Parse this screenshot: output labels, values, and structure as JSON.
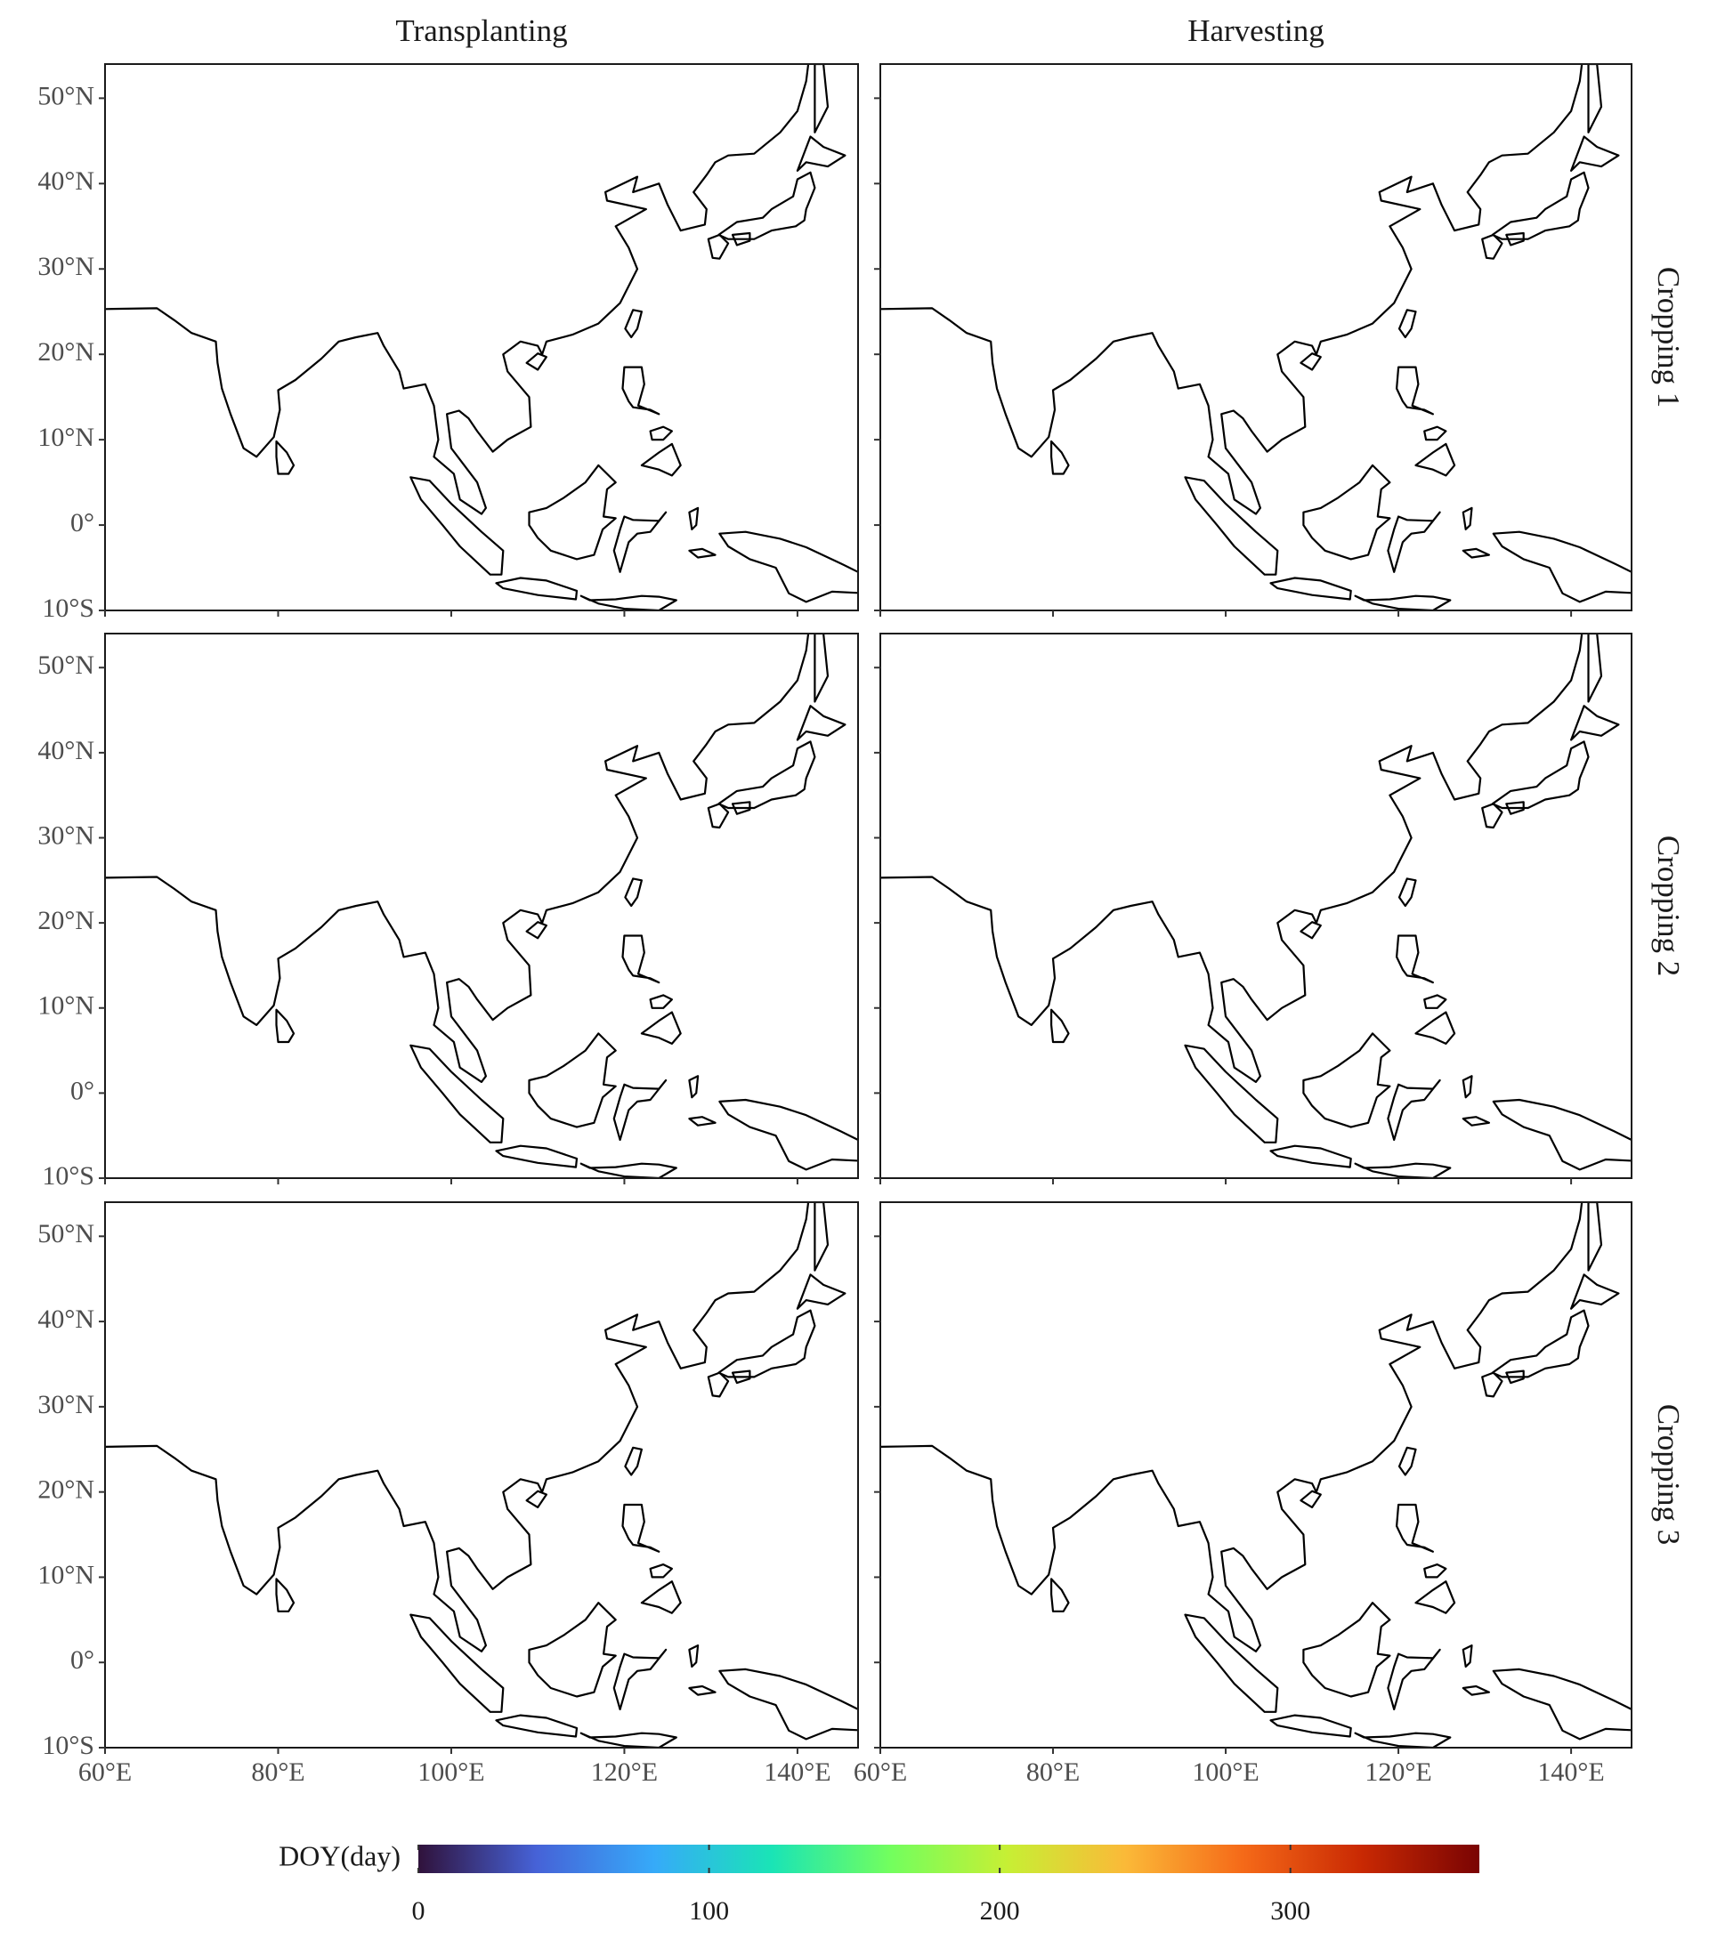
{
  "figure": {
    "columns": [
      "Transplanting",
      "Harvesting"
    ],
    "rows": [
      "Cropping 1",
      "Cropping 2",
      "Cropping 3"
    ],
    "xlim": [
      60,
      147
    ],
    "ylim": [
      -10,
      54
    ],
    "xticks": [
      {
        "value": 60,
        "label": "60°E"
      },
      {
        "value": 80,
        "label": "80°E"
      },
      {
        "value": 100,
        "label": "100°E"
      },
      {
        "value": 120,
        "label": "120°E"
      },
      {
        "value": 140,
        "label": "140°E"
      }
    ],
    "yticks": [
      {
        "value": -10,
        "label": "10°S"
      },
      {
        "value": 0,
        "label": "0°"
      },
      {
        "value": 10,
        "label": "10°N"
      },
      {
        "value": 20,
        "label": "20°N"
      },
      {
        "value": 30,
        "label": "30°N"
      },
      {
        "value": 40,
        "label": "40°N"
      },
      {
        "value": 50,
        "label": "50°N"
      }
    ],
    "colorbar": {
      "label": "DOY(day)",
      "lim": [
        0,
        365
      ],
      "ticks": [
        0,
        100,
        200,
        300
      ],
      "colors": [
        "#30123b",
        "#4662d7",
        "#36aaf9",
        "#1ae4b6",
        "#72fe5e",
        "#c7ef34",
        "#fbb938",
        "#f56918",
        "#c92903",
        "#7a0403"
      ]
    }
  }
}
